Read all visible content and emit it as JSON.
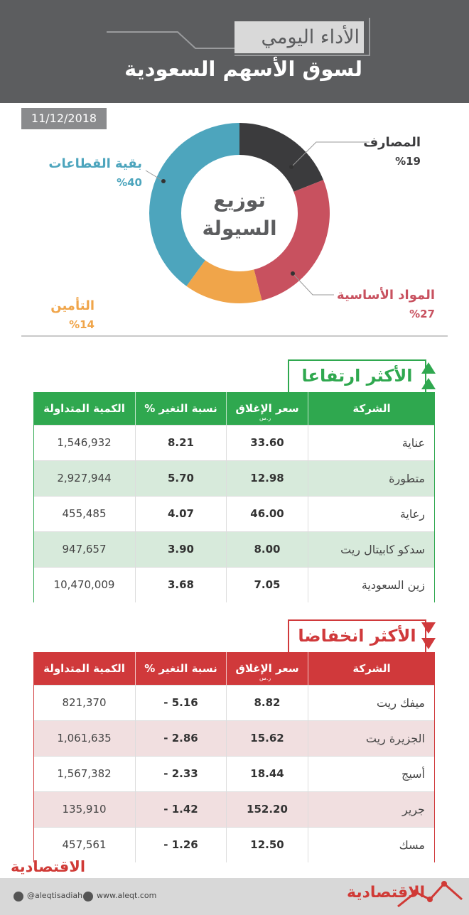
{
  "header": {
    "kicker": "الأداء اليومي",
    "title": "لسوق الأسهم السعودية"
  },
  "date": "11/12/2018",
  "chart_data": {
    "type": "donut",
    "title": "توزيع السيولة",
    "categories": [
      "المصارف",
      "المواد الأساسية",
      "التأمين",
      "بقية القطاعات"
    ],
    "values": [
      19,
      27,
      14,
      40
    ],
    "value_labels": [
      "%19",
      "%27",
      "%14",
      "%40"
    ],
    "colors": [
      "#3b3b3d",
      "#c8515f",
      "#f0a54a",
      "#4da5bd"
    ]
  },
  "gainers": {
    "title": "الأكثر ارتفاعا",
    "columns": [
      "الشركة",
      "سعر الإغلاق",
      "نسبة التغير %",
      "الكمية المتداولة"
    ],
    "currency": "ر.س",
    "rows": [
      [
        "عناية",
        "33.60",
        "8.21",
        "1,546,932"
      ],
      [
        "متطورة",
        "12.98",
        "5.70",
        "2,927,944"
      ],
      [
        "رعاية",
        "46.00",
        "4.07",
        "455,485"
      ],
      [
        "سدكو كابيتال ريت",
        "8.00",
        "3.90",
        "947,657"
      ],
      [
        "زين السعودية",
        "7.05",
        "3.68",
        "10,470,009"
      ]
    ]
  },
  "losers": {
    "title": "الأكثر انخفاضا",
    "columns": [
      "الشركة",
      "سعر الإغلاق",
      "نسبة التغير %",
      "الكمية المتداولة"
    ],
    "currency": "ر.س",
    "rows": [
      [
        "ميفك ريت",
        "8.82",
        "- 5.16",
        "821,370"
      ],
      [
        "الجزيرة ريت",
        "15.62",
        "- 2.86",
        "1,061,635"
      ],
      [
        "أسيج",
        "18.44",
        "- 2.33",
        "1,567,382"
      ],
      [
        "جرير",
        "152.20",
        "- 1.42",
        "135,910"
      ],
      [
        "مسك",
        "12.50",
        "- 1.26",
        "457,561"
      ]
    ]
  },
  "footer": {
    "brand": "الاقتصادية",
    "twitter": "@aleqtisadiah",
    "website": "www.aleqt.com"
  }
}
